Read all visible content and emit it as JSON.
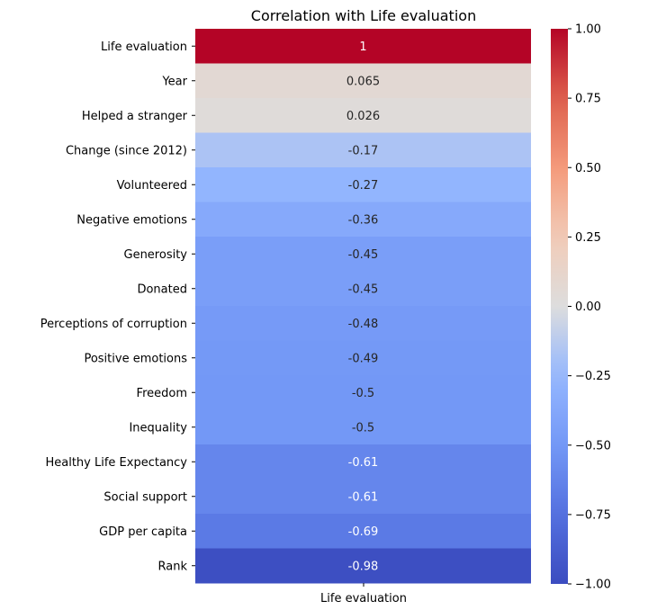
{
  "chart_data": {
    "type": "heatmap",
    "title": "Correlation with Life evaluation",
    "column": "Life evaluation",
    "rows": [
      {
        "label": "Life evaluation",
        "value": 1.0,
        "display": "1"
      },
      {
        "label": "Year",
        "value": 0.065,
        "display": "0.065"
      },
      {
        "label": "Helped a stranger",
        "value": 0.026,
        "display": "0.026"
      },
      {
        "label": "Change (since 2012)",
        "value": -0.17,
        "display": "-0.17"
      },
      {
        "label": "Volunteered",
        "value": -0.27,
        "display": "-0.27"
      },
      {
        "label": "Negative emotions",
        "value": -0.36,
        "display": "-0.36"
      },
      {
        "label": "Generosity",
        "value": -0.45,
        "display": "-0.45"
      },
      {
        "label": "Donated",
        "value": -0.45,
        "display": "-0.45"
      },
      {
        "label": "Perceptions of corruption",
        "value": -0.48,
        "display": "-0.48"
      },
      {
        "label": "Positive emotions",
        "value": -0.49,
        "display": "-0.49"
      },
      {
        "label": "Freedom",
        "value": -0.5,
        "display": "-0.5"
      },
      {
        "label": "Inequality",
        "value": -0.5,
        "display": "-0.5"
      },
      {
        "label": "Healthy Life Expectancy ",
        "value": -0.61,
        "display": "-0.61"
      },
      {
        "label": "Social support",
        "value": -0.61,
        "display": "-0.61"
      },
      {
        "label": "GDP per capita",
        "value": -0.69,
        "display": "-0.69"
      },
      {
        "label": "Rank",
        "value": -0.98,
        "display": "-0.98"
      }
    ],
    "colorbar": {
      "vmin": -1.0,
      "vmax": 1.0,
      "ticks": [
        {
          "value": 1.0,
          "label": "1.00"
        },
        {
          "value": 0.75,
          "label": "0.75"
        },
        {
          "value": 0.5,
          "label": "0.50"
        },
        {
          "value": 0.25,
          "label": "0.25"
        },
        {
          "value": 0.0,
          "label": "0.00"
        },
        {
          "value": -0.25,
          "label": "−0.25"
        },
        {
          "value": -0.5,
          "label": "−0.50"
        },
        {
          "value": -0.75,
          "label": "−0.75"
        },
        {
          "value": -1.0,
          "label": "−1.00"
        }
      ]
    },
    "colormap": "coolwarm"
  }
}
